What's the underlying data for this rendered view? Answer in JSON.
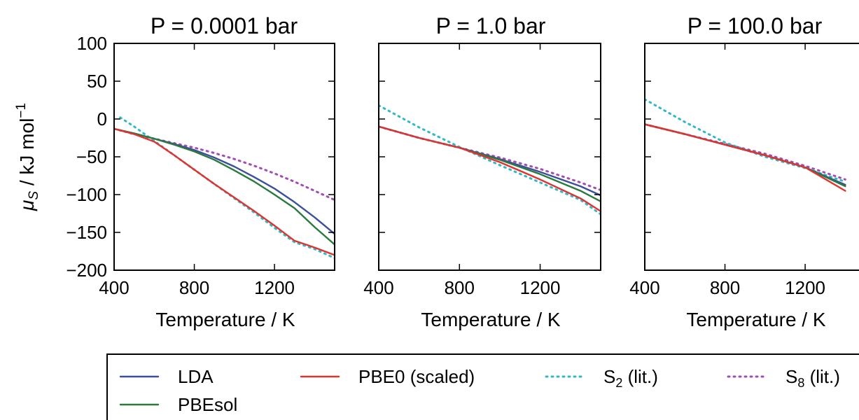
{
  "ylabel_main": "μ",
  "ylabel_sub": "S",
  "ylabel_rest": " / kJ mol",
  "ylabel_sup": "−1",
  "xlabel": "Temperature / K",
  "legend": {
    "entries": [
      {
        "label_main": "LDA",
        "label_sub": "",
        "label_rest": "",
        "color": "#3b4f9c",
        "style": "solid"
      },
      {
        "label_main": "PBE0 (scaled)",
        "label_sub": "",
        "label_rest": "",
        "color": "#e0322f",
        "style": "solid"
      },
      {
        "label_main": "S",
        "label_sub": "2",
        "label_rest": " (lit.)",
        "color": "#35b8c6",
        "style": "dotted"
      },
      {
        "label_main": "S",
        "label_sub": "8",
        "label_rest": " (lit.)",
        "color": "#a24db3",
        "style": "dotted"
      },
      {
        "label_main": "PBEsol",
        "label_sub": "",
        "label_rest": "",
        "color": "#2a7a3e",
        "style": "solid"
      }
    ]
  },
  "chart_data": [
    {
      "type": "line",
      "title": "P = 0.0001 bar",
      "xlim": [
        400,
        1500
      ],
      "ylim": [
        -200,
        100
      ],
      "xticks": [
        400,
        800,
        1200
      ],
      "yticks": [
        100,
        50,
        0,
        -50,
        -100,
        -150,
        -200
      ],
      "ytick_labels": [
        "100",
        "50",
        "0",
        "−50",
        "−100",
        "−150",
        "−200"
      ],
      "series": [
        {
          "name": "S8 (lit.)",
          "color": "#a24db3",
          "dash": "dotted",
          "x": [
            400,
            500,
            600,
            700,
            800,
            900,
            1000,
            1100,
            1200,
            1300,
            1400,
            1500
          ],
          "y": [
            -13,
            -20,
            -26,
            -32,
            -38,
            -45,
            -53,
            -62,
            -72,
            -83,
            -95,
            -107
          ]
        },
        {
          "name": "S2 (lit.)",
          "color": "#35b8c6",
          "dash": "dotted",
          "x": [
            430,
            500,
            600,
            700,
            800,
            900,
            1000,
            1100,
            1200,
            1300,
            1400,
            1500
          ],
          "y": [
            2,
            -10,
            -29,
            -48,
            -67,
            -86,
            -105,
            -124,
            -144,
            -163,
            -172,
            -184
          ]
        },
        {
          "name": "LDA",
          "color": "#3b4f9c",
          "dash": "solid",
          "x": [
            400,
            500,
            600,
            700,
            800,
            900,
            1000,
            1100,
            1200,
            1300,
            1400,
            1500
          ],
          "y": [
            -13,
            -19,
            -26,
            -33,
            -41,
            -51,
            -63,
            -77,
            -92,
            -110,
            -130,
            -152
          ]
        },
        {
          "name": "PBEsol",
          "color": "#2a7a3e",
          "dash": "solid",
          "x": [
            400,
            500,
            600,
            700,
            800,
            900,
            1000,
            1100,
            1200,
            1300,
            1400,
            1500
          ],
          "y": [
            -13,
            -19,
            -26,
            -34,
            -43,
            -54,
            -68,
            -83,
            -100,
            -118,
            -143,
            -166
          ]
        },
        {
          "name": "PBE0 (scaled)",
          "color": "#e0322f",
          "dash": "solid",
          "x": [
            400,
            500,
            600,
            700,
            800,
            900,
            1000,
            1100,
            1200,
            1300,
            1400,
            1500
          ],
          "y": [
            -13,
            -20,
            -30,
            -48,
            -67,
            -86,
            -104,
            -122,
            -141,
            -161,
            -170,
            -180
          ]
        }
      ]
    },
    {
      "type": "line",
      "title": "P = 1.0 bar",
      "xlim": [
        400,
        1500
      ],
      "ylim": [
        -200,
        100
      ],
      "xticks": [
        400,
        800,
        1200
      ],
      "series": [
        {
          "name": "S8 (lit.)",
          "color": "#a24db3",
          "dash": "dotted",
          "x": [
            400,
            600,
            800,
            1000,
            1200,
            1400,
            1500
          ],
          "y": [
            -10,
            -25,
            -38,
            -51,
            -66,
            -84,
            -94
          ]
        },
        {
          "name": "S2 (lit.)",
          "color": "#35b8c6",
          "dash": "dotted",
          "x": [
            400,
            600,
            800,
            1000,
            1200,
            1400,
            1500
          ],
          "y": [
            18,
            -11,
            -37,
            -61,
            -84,
            -107,
            -126
          ]
        },
        {
          "name": "LDA",
          "color": "#3b4f9c",
          "dash": "solid",
          "x": [
            400,
            600,
            800,
            1000,
            1200,
            1400,
            1500
          ],
          "y": [
            -10,
            -25,
            -38,
            -53,
            -70,
            -89,
            -101
          ]
        },
        {
          "name": "PBEsol",
          "color": "#2a7a3e",
          "dash": "solid",
          "x": [
            400,
            600,
            800,
            1000,
            1200,
            1400,
            1500
          ],
          "y": [
            -10,
            -25,
            -38,
            -54,
            -73,
            -95,
            -109
          ]
        },
        {
          "name": "PBE0 (scaled)",
          "color": "#e0322f",
          "dash": "solid",
          "x": [
            400,
            600,
            800,
            1000,
            1200,
            1400,
            1500
          ],
          "y": [
            -10,
            -25,
            -38,
            -57,
            -80,
            -105,
            -122
          ]
        }
      ]
    },
    {
      "type": "line",
      "title": "P = 100.0 bar",
      "xlim": [
        400,
        1500
      ],
      "ylim": [
        -200,
        100
      ],
      "xticks": [
        400,
        800,
        1200
      ],
      "series": [
        {
          "name": "S8 (lit.)",
          "color": "#a24db3",
          "dash": "dotted",
          "x": [
            400,
            600,
            800,
            1000,
            1200,
            1400
          ],
          "y": [
            -7,
            -20,
            -33,
            -46,
            -62,
            -80
          ]
        },
        {
          "name": "S2 (lit.)",
          "color": "#35b8c6",
          "dash": "dotted",
          "x": [
            400,
            600,
            800,
            1000,
            1200,
            1400
          ],
          "y": [
            26,
            -4,
            -31,
            -50,
            -65,
            -83
          ]
        },
        {
          "name": "LDA",
          "color": "#3b4f9c",
          "dash": "solid",
          "x": [
            400,
            600,
            800,
            1000,
            1200,
            1400
          ],
          "y": [
            -7,
            -20,
            -34,
            -48,
            -64,
            -87
          ]
        },
        {
          "name": "PBEsol",
          "color": "#2a7a3e",
          "dash": "solid",
          "x": [
            400,
            600,
            800,
            1000,
            1200,
            1400
          ],
          "y": [
            -7,
            -20,
            -34,
            -48,
            -64,
            -89
          ]
        },
        {
          "name": "PBE0 (scaled)",
          "color": "#e0322f",
          "dash": "solid",
          "x": [
            400,
            600,
            800,
            1000,
            1200,
            1400
          ],
          "y": [
            -7,
            -20,
            -34,
            -48,
            -64,
            -95
          ]
        }
      ]
    }
  ]
}
